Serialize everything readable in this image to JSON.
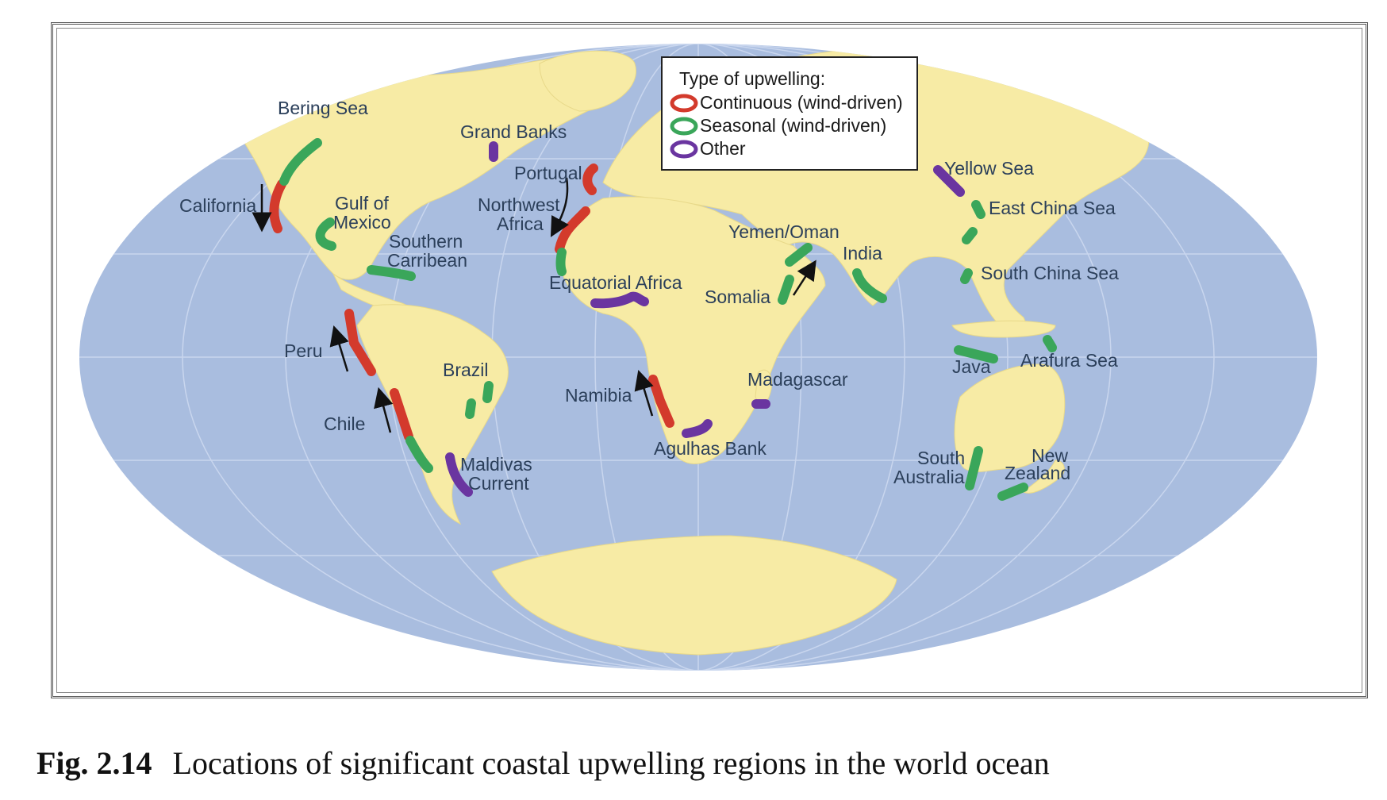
{
  "legend": {
    "title": "Type of upwelling:",
    "items": [
      {
        "label": "Continuous (wind-driven)",
        "color": "#d33a2c",
        "type": "continuous"
      },
      {
        "label": "Seasonal (wind-driven)",
        "color": "#3aa65a",
        "type": "seasonal"
      },
      {
        "label": "Other",
        "color": "#6a35a0",
        "type": "other"
      }
    ]
  },
  "regions": {
    "bering_sea": "Bering Sea",
    "grand_banks": "Grand Banks",
    "california": "California",
    "gulf_of_mexico_1": "Gulf of",
    "gulf_of_mexico_2": "Mexico",
    "southern_carribean_1": "Southern",
    "southern_carribean_2": "Carribean",
    "portugal": "Portugal",
    "northwest_africa_1": "Northwest",
    "northwest_africa_2": "Africa",
    "equatorial_africa": "Equatorial Africa",
    "yemen_oman": "Yemen/Oman",
    "somalia": "Somalia",
    "india": "India",
    "yellow_sea": "Yellow Sea",
    "east_china_sea": "East China Sea",
    "south_china_sea": "South China Sea",
    "peru": "Peru",
    "brazil": "Brazil",
    "chile": "Chile",
    "namibia": "Namibia",
    "madagascar": "Madagascar",
    "agulhas_bank": "Agulhas Bank",
    "maldivas_current_1": "Maldivas",
    "maldivas_current_2": "Current",
    "java": "Java",
    "arafura_sea": "Arafura Sea",
    "south_australia_1": "South",
    "south_australia_2": "Australia",
    "new_zealand_1": "New",
    "new_zealand_2": "Zealand"
  },
  "caption": {
    "number": "Fig. 2.14",
    "text": "Locations of significant coastal upwelling regions in the world ocean"
  },
  "colors": {
    "ocean": "#a9bddf",
    "land": "#f7eba5",
    "continuous": "#d33a2c",
    "seasonal": "#3aa65a",
    "other": "#6a35a0"
  }
}
